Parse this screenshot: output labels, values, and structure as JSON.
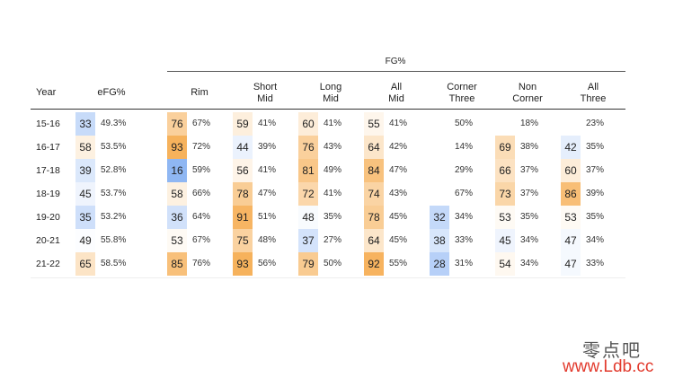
{
  "chart_data": {
    "type": "table",
    "title": "",
    "group_header": "FG%",
    "row_header": "Year",
    "columns": [
      {
        "key": "efg",
        "label": [
          "eFG%"
        ]
      },
      {
        "key": "rim",
        "label": [
          "Rim"
        ]
      },
      {
        "key": "short_mid",
        "label": [
          "Short",
          "Mid"
        ]
      },
      {
        "key": "long_mid",
        "label": [
          "Long",
          "Mid"
        ]
      },
      {
        "key": "all_mid",
        "label": [
          "All",
          "Mid"
        ]
      },
      {
        "key": "corner_three",
        "label": [
          "Corner",
          "Three"
        ]
      },
      {
        "key": "non_corner",
        "label": [
          "Non",
          "Corner"
        ]
      },
      {
        "key": "all_three",
        "label": [
          "All",
          "Three"
        ]
      }
    ],
    "rows": [
      {
        "year": "15-16",
        "cells": [
          {
            "rank": 33,
            "pct": "49.3%"
          },
          {
            "rank": 76,
            "pct": "67%"
          },
          {
            "rank": 59,
            "pct": "41%"
          },
          {
            "rank": 60,
            "pct": "41%"
          },
          {
            "rank": 55,
            "pct": "41%"
          },
          {
            "rank": null,
            "pct": "50%"
          },
          {
            "rank": null,
            "pct": "18%"
          },
          {
            "rank": null,
            "pct": "23%"
          }
        ]
      },
      {
        "year": "16-17",
        "cells": [
          {
            "rank": 58,
            "pct": "53.5%"
          },
          {
            "rank": 93,
            "pct": "72%"
          },
          {
            "rank": 44,
            "pct": "39%"
          },
          {
            "rank": 76,
            "pct": "43%"
          },
          {
            "rank": 64,
            "pct": "42%"
          },
          {
            "rank": null,
            "pct": "14%"
          },
          {
            "rank": 69,
            "pct": "38%"
          },
          {
            "rank": 42,
            "pct": "35%"
          }
        ]
      },
      {
        "year": "17-18",
        "cells": [
          {
            "rank": 39,
            "pct": "52.8%"
          },
          {
            "rank": 16,
            "pct": "59%"
          },
          {
            "rank": 56,
            "pct": "41%"
          },
          {
            "rank": 81,
            "pct": "49%"
          },
          {
            "rank": 84,
            "pct": "47%"
          },
          {
            "rank": null,
            "pct": "29%"
          },
          {
            "rank": 66,
            "pct": "37%"
          },
          {
            "rank": 60,
            "pct": "37%"
          }
        ]
      },
      {
        "year": "18-19",
        "cells": [
          {
            "rank": 45,
            "pct": "53.7%"
          },
          {
            "rank": 58,
            "pct": "66%"
          },
          {
            "rank": 78,
            "pct": "47%"
          },
          {
            "rank": 72,
            "pct": "41%"
          },
          {
            "rank": 74,
            "pct": "43%"
          },
          {
            "rank": null,
            "pct": "67%"
          },
          {
            "rank": 73,
            "pct": "37%"
          },
          {
            "rank": 86,
            "pct": "39%"
          }
        ]
      },
      {
        "year": "19-20",
        "cells": [
          {
            "rank": 35,
            "pct": "53.2%"
          },
          {
            "rank": 36,
            "pct": "64%"
          },
          {
            "rank": 91,
            "pct": "51%"
          },
          {
            "rank": 48,
            "pct": "35%"
          },
          {
            "rank": 78,
            "pct": "45%"
          },
          {
            "rank": 32,
            "pct": "34%"
          },
          {
            "rank": 53,
            "pct": "35%"
          },
          {
            "rank": 53,
            "pct": "35%"
          }
        ]
      },
      {
        "year": "20-21",
        "cells": [
          {
            "rank": 49,
            "pct": "55.8%"
          },
          {
            "rank": 53,
            "pct": "67%"
          },
          {
            "rank": 75,
            "pct": "48%"
          },
          {
            "rank": 37,
            "pct": "27%"
          },
          {
            "rank": 64,
            "pct": "45%"
          },
          {
            "rank": 38,
            "pct": "33%"
          },
          {
            "rank": 45,
            "pct": "34%"
          },
          {
            "rank": 47,
            "pct": "34%"
          }
        ]
      },
      {
        "year": "21-22",
        "cells": [
          {
            "rank": 65,
            "pct": "58.5%"
          },
          {
            "rank": 85,
            "pct": "76%"
          },
          {
            "rank": 93,
            "pct": "56%"
          },
          {
            "rank": 79,
            "pct": "50%"
          },
          {
            "rank": 92,
            "pct": "55%"
          },
          {
            "rank": 28,
            "pct": "31%"
          },
          {
            "rank": 54,
            "pct": "34%"
          },
          {
            "rank": 47,
            "pct": "33%"
          }
        ]
      }
    ],
    "color_scale": {
      "low": "#5b95ee",
      "mid": "#ffffff",
      "high": "#f5a541",
      "domain": [
        0,
        50,
        100
      ]
    },
    "grid": false
  },
  "watermark": {
    "chinese": "零点吧",
    "url": "www.Ldb.cc"
  }
}
